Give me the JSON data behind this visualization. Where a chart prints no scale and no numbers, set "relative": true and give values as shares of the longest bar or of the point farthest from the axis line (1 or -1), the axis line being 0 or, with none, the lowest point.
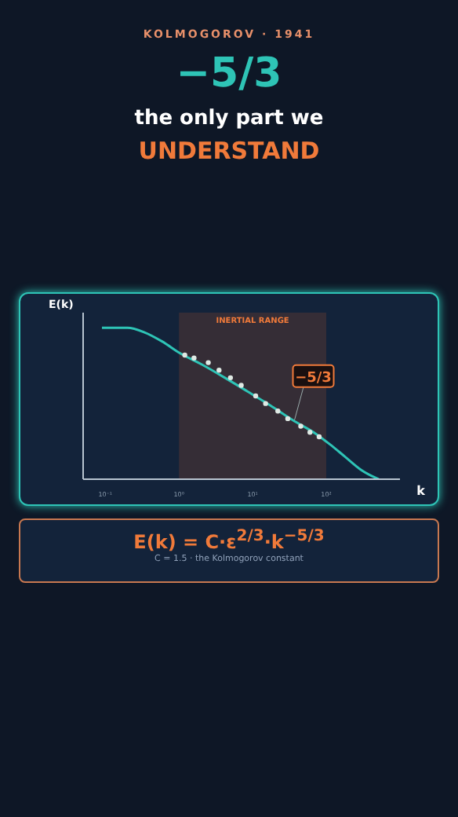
{
  "chart_data": {
    "type": "line",
    "title": "KOLMOGOROV · 1941",
    "subtitle": "−5/3",
    "xlabel": "k",
    "ylabel": "E(k)",
    "relative": true,
    "log": "x",
    "grid": false,
    "legend": false,
    "xlim": [
      0.05,
      1000
    ],
    "xticks": [
      {
        "value": 0.1,
        "label": "10⁻¹"
      },
      {
        "value": 1,
        "label": "10⁰"
      },
      {
        "value": 10,
        "label": "10¹"
      },
      {
        "value": 100,
        "label": "10²"
      }
    ],
    "series": [
      {
        "color": "#2ec4b6",
        "x": [
          0.09,
          0.2,
          0.34,
          0.59,
          1.05,
          2,
          4.2,
          8.5,
          17,
          35,
          72,
          112,
          178,
          300,
          513
        ],
        "values": [
          1,
          1,
          0.97,
          0.91,
          0.83,
          0.76,
          0.67,
          0.58,
          0.49,
          0.39,
          0.3,
          0.23,
          0.15,
          0.06,
          0
        ]
      },
      {
        "type": "scatter",
        "color": "#dfe9e4",
        "x": [
          1.2,
          1.6,
          2.5,
          3.5,
          5,
          7,
          11,
          15,
          22,
          30,
          45,
          60,
          80
        ],
        "values": [
          0.82,
          0.8,
          0.77,
          0.72,
          0.67,
          0.62,
          0.55,
          0.5,
          0.45,
          0.4,
          0.35,
          0.31,
          0.28
        ]
      }
    ],
    "bands": [
      {
        "axis": "x",
        "from": 1,
        "to": 100,
        "label": "INERTIAL RANGE",
        "color": "#3a2f36"
      }
    ],
    "annotations": [
      {
        "text": "−5/3",
        "x": 37,
        "y": 0.39
      },
      "the only part we",
      "UNDERSTAND",
      "E(k) = C·ε$^{2/3}$·k$^{−5/3}$",
      "C = 1.5 · the Kolmogorov constant"
    ]
  }
}
